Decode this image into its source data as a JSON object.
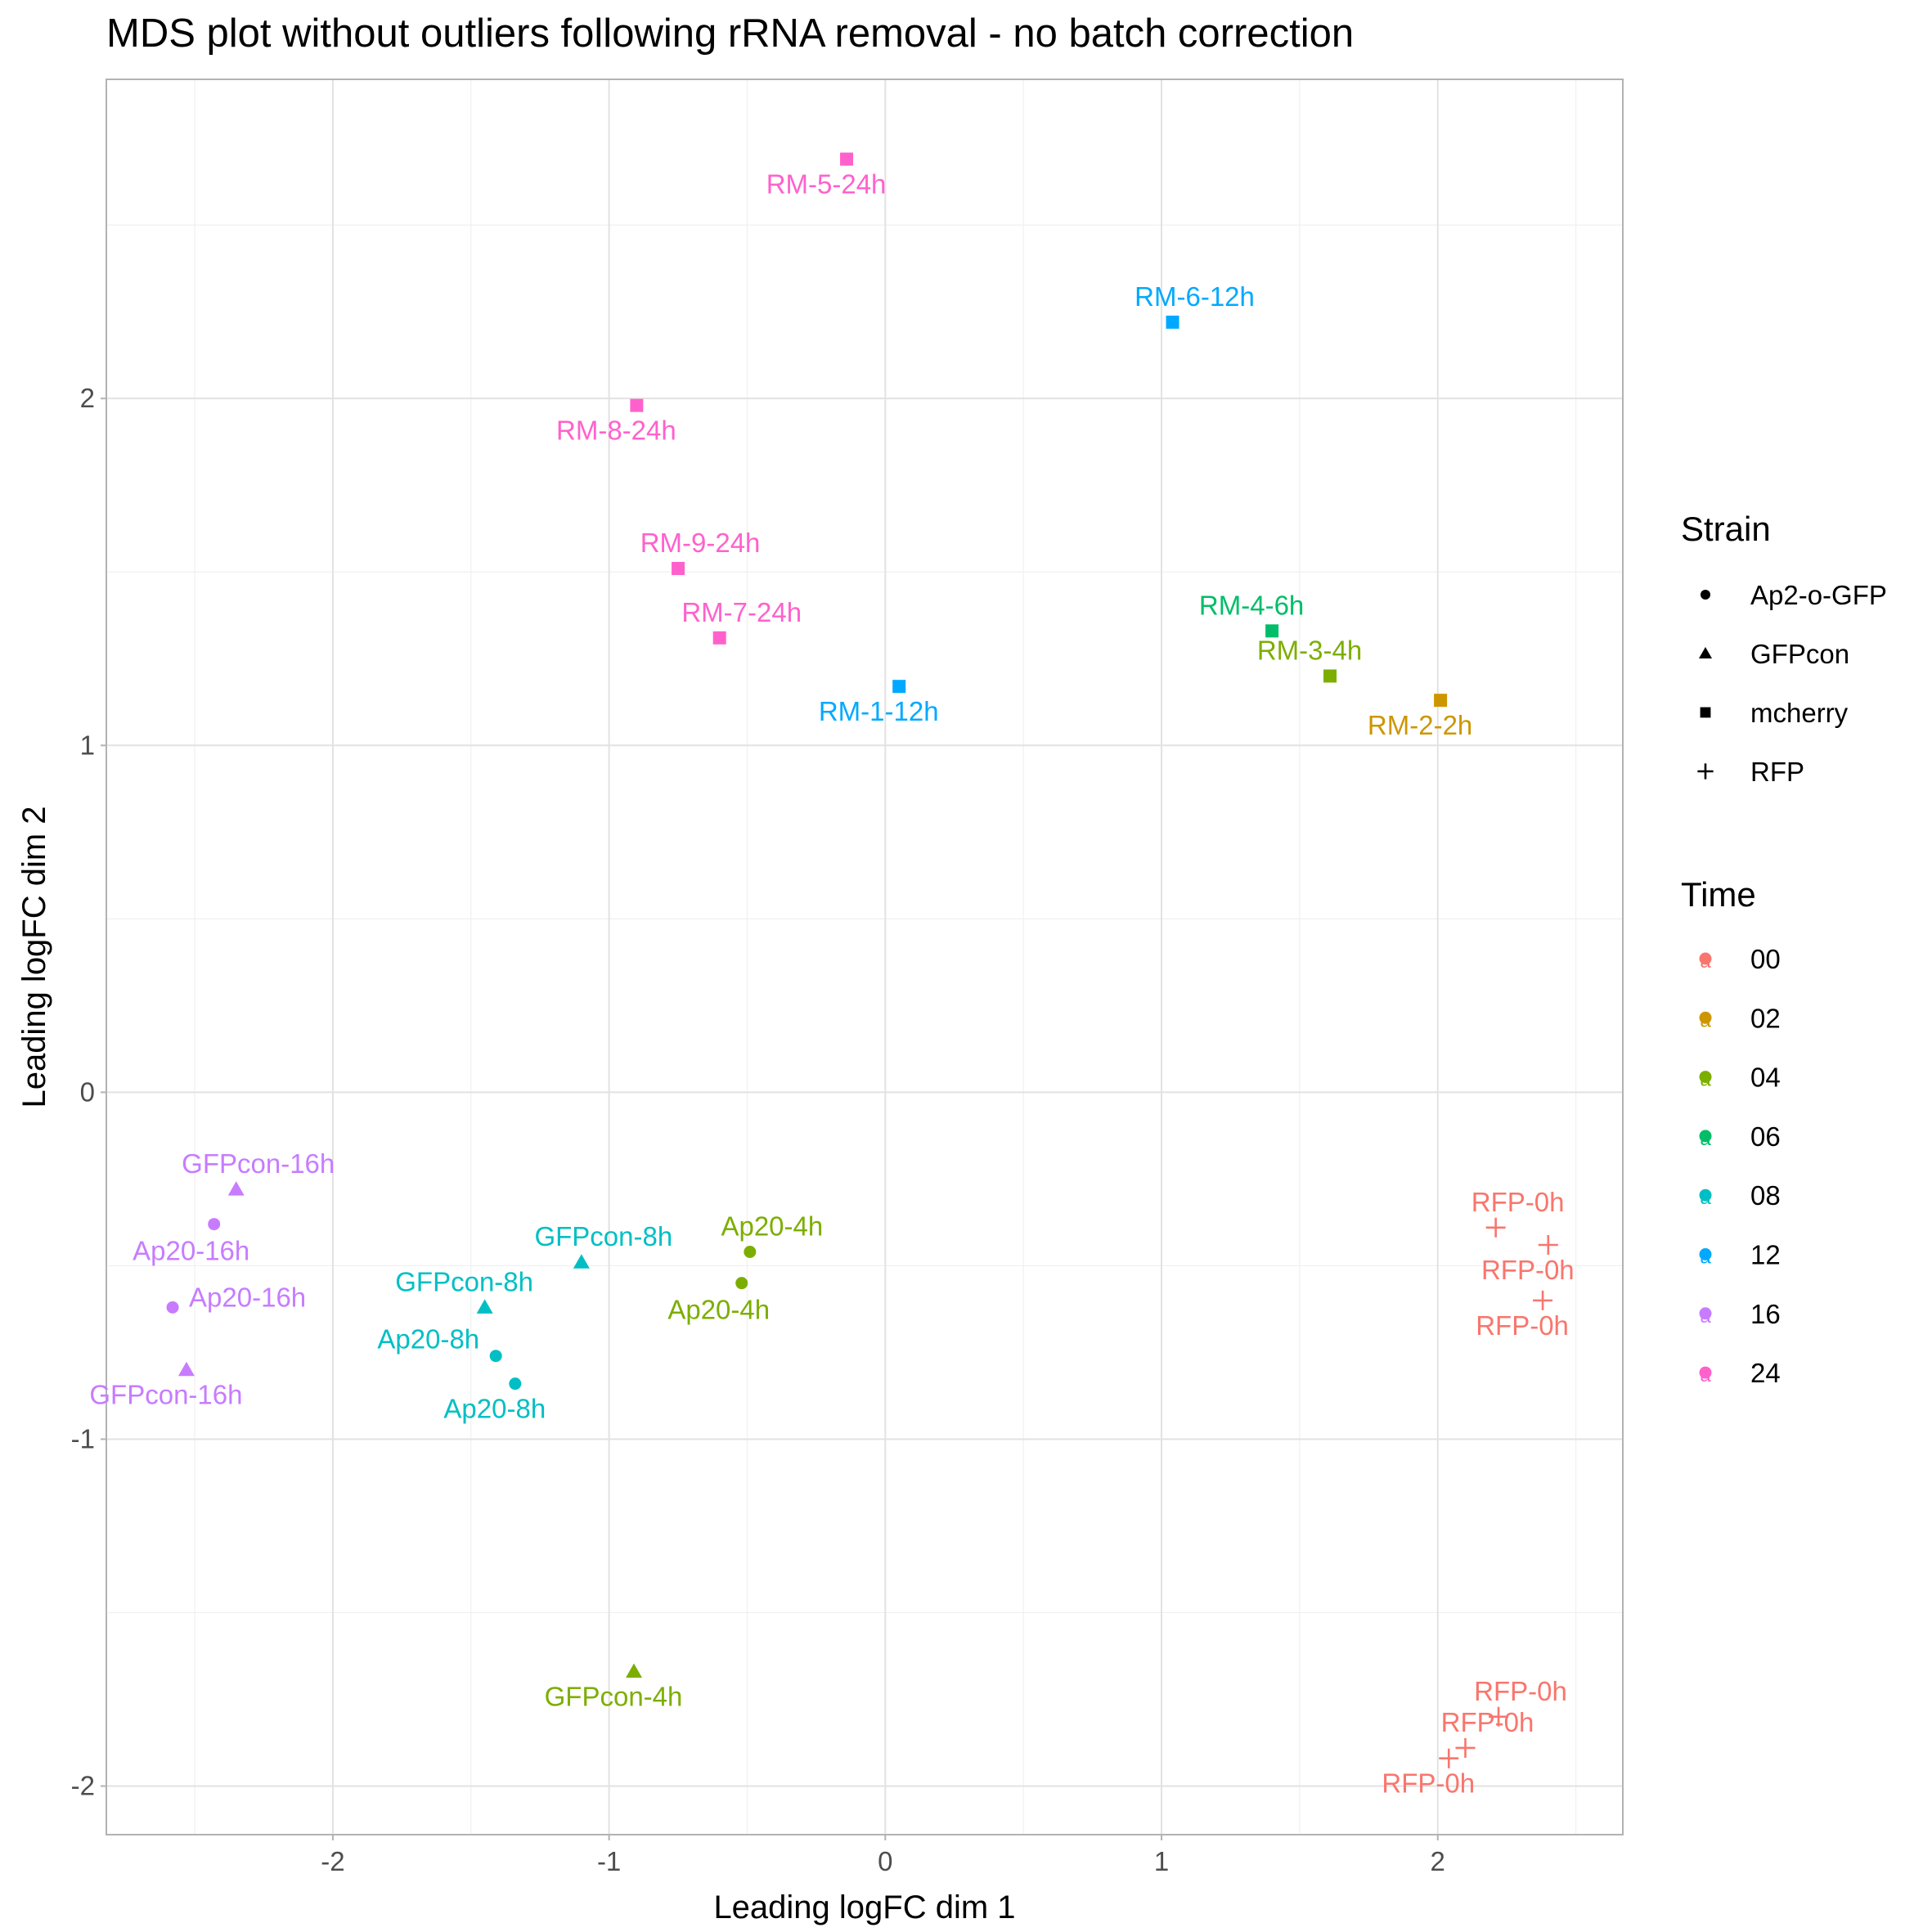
{
  "chart_data": {
    "type": "scatter",
    "title": "MDS plot without outliers following rRNA removal - no batch correction",
    "xlabel": "Leading logFC dim 1",
    "ylabel": "Leading logFC dim 2",
    "xlim": [
      -2.82,
      2.67
    ],
    "ylim": [
      -2.14,
      2.92
    ],
    "xticks": [
      -2,
      -1,
      0,
      1,
      2
    ],
    "yticks": [
      -2,
      -1,
      0,
      1,
      2
    ],
    "grid": true,
    "legend_position": "right",
    "legend": {
      "strain": {
        "title": "Strain",
        "items": [
          {
            "label": "Ap2-o-GFP",
            "shape": "circle"
          },
          {
            "label": "GFPcon",
            "shape": "triangle"
          },
          {
            "label": "mcherry",
            "shape": "square"
          },
          {
            "label": "RFP",
            "shape": "plus"
          }
        ]
      },
      "time": {
        "title": "Time",
        "items": [
          {
            "label": "00",
            "color": "#F8766D"
          },
          {
            "label": "02",
            "color": "#CD9600"
          },
          {
            "label": "04",
            "color": "#7CAE00"
          },
          {
            "label": "06",
            "color": "#00BE67"
          },
          {
            "label": "08",
            "color": "#00BFC4"
          },
          {
            "label": "12",
            "color": "#00A9FF"
          },
          {
            "label": "16",
            "color": "#C77CFF"
          },
          {
            "label": "24",
            "color": "#FF61CC"
          }
        ]
      }
    },
    "points": [
      {
        "label": "RM-5-24h",
        "x": -0.14,
        "y": 2.69,
        "strain": "mcherry",
        "time": "24",
        "label_pos": "below"
      },
      {
        "label": "RM-6-12h",
        "x": 1.04,
        "y": 2.22,
        "strain": "mcherry",
        "time": "12",
        "label_pos": "above"
      },
      {
        "label": "RM-8-24h",
        "x": -0.9,
        "y": 1.98,
        "strain": "mcherry",
        "time": "24",
        "label_pos": "below"
      },
      {
        "label": "RM-9-24h",
        "x": -0.75,
        "y": 1.51,
        "strain": "mcherry",
        "time": "24",
        "label_pos": "above"
      },
      {
        "label": "RM-7-24h",
        "x": -0.6,
        "y": 1.31,
        "strain": "mcherry",
        "time": "24",
        "label_pos": "above"
      },
      {
        "label": "RM-4-6h",
        "x": 1.4,
        "y": 1.33,
        "strain": "mcherry",
        "time": "06",
        "label_pos": "above-left"
      },
      {
        "label": "RM-3-4h",
        "x": 1.61,
        "y": 1.2,
        "strain": "mcherry",
        "time": "04",
        "label_pos": "above-left"
      },
      {
        "label": "RM-1-12h",
        "x": 0.05,
        "y": 1.17,
        "strain": "mcherry",
        "time": "12",
        "label_pos": "below"
      },
      {
        "label": "RM-2-2h",
        "x": 2.01,
        "y": 1.13,
        "strain": "mcherry",
        "time": "02",
        "label_pos": "below"
      },
      {
        "label": "GFPcon-16h",
        "x": -2.35,
        "y": -0.28,
        "strain": "GFPcon",
        "time": "16",
        "label_pos": "above"
      },
      {
        "label": "Ap20-16h",
        "x": -2.43,
        "y": -0.38,
        "strain": "Ap2-o-GFP",
        "time": "16",
        "label_pos": "below-left"
      },
      {
        "label": "Ap20-16h",
        "x": -2.58,
        "y": -0.62,
        "strain": "Ap2-o-GFP",
        "time": "16",
        "label_pos": "right"
      },
      {
        "label": "GFPcon-16h",
        "x": -2.53,
        "y": -0.8,
        "strain": "GFPcon",
        "time": "16",
        "label_pos": "below"
      },
      {
        "label": "GFPcon-8h",
        "x": -1.1,
        "y": -0.49,
        "strain": "GFPcon",
        "time": "08",
        "label_pos": "above"
      },
      {
        "label": "GFPcon-8h",
        "x": -1.45,
        "y": -0.62,
        "strain": "GFPcon",
        "time": "08",
        "label_pos": "above-left"
      },
      {
        "label": "Ap20-8h",
        "x": -1.41,
        "y": -0.76,
        "strain": "Ap2-o-GFP",
        "time": "08",
        "label_pos": "left"
      },
      {
        "label": "Ap20-8h",
        "x": -1.34,
        "y": -0.84,
        "strain": "Ap2-o-GFP",
        "time": "08",
        "label_pos": "below"
      },
      {
        "label": "Ap20-4h",
        "x": -0.49,
        "y": -0.46,
        "strain": "Ap2-o-GFP",
        "time": "04",
        "label_pos": "above"
      },
      {
        "label": "Ap20-4h",
        "x": -0.52,
        "y": -0.55,
        "strain": "Ap2-o-GFP",
        "time": "04",
        "label_pos": "below-left"
      },
      {
        "label": "GFPcon-4h",
        "x": -0.91,
        "y": -1.67,
        "strain": "GFPcon",
        "time": "04",
        "label_pos": "below"
      },
      {
        "label": "RFP-0h",
        "x": 2.21,
        "y": -0.39,
        "strain": "RFP",
        "time": "00",
        "label_pos": "above"
      },
      {
        "label": "RFP-0h",
        "x": 2.4,
        "y": -0.44,
        "strain": "RFP",
        "time": "00",
        "label_pos": "below"
      },
      {
        "label": "RFP-0h",
        "x": 2.38,
        "y": -0.6,
        "strain": "RFP",
        "time": "00",
        "label_pos": "below"
      },
      {
        "label": "RFP-0h",
        "x": 2.22,
        "y": -1.8,
        "strain": "RFP",
        "time": "00",
        "label_pos": "above"
      },
      {
        "label": "RFP-0h",
        "x": 2.1,
        "y": -1.89,
        "strain": "RFP",
        "time": "00",
        "label_pos": "above"
      },
      {
        "label": "RFP-0h",
        "x": 2.04,
        "y": -1.92,
        "strain": "RFP",
        "time": "00",
        "label_pos": "below"
      }
    ]
  }
}
